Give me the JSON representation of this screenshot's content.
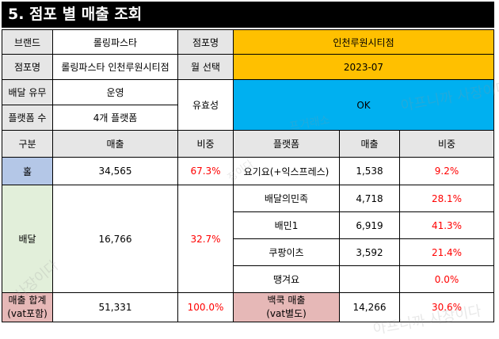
{
  "title": "5. 점포 별 매출 조회",
  "info": {
    "brand_label": "브랜드",
    "brand_value": "롤링파스타",
    "store_name_label": "점포명",
    "store_name_value": "인천루원시티점",
    "store_label": "점포명",
    "store_value": "롤링파스타 인천루원시티점",
    "month_label": "월 선택",
    "month_value": "2023-07",
    "delivery_label": "배달 유무",
    "delivery_value": "운영",
    "validity_label": "유효성",
    "validity_value": "OK",
    "platform_count_label": "플랫폼 수",
    "platform_count_value": "4개 플랫폼"
  },
  "headers": {
    "category": "구분",
    "sales": "매출",
    "ratio": "비중",
    "platform": "플랫폼",
    "platform_sales": "매출",
    "platform_ratio": "비중"
  },
  "hall": {
    "label": "홀",
    "sales": "34,565",
    "ratio": "67.3%"
  },
  "delivery": {
    "label": "배달",
    "sales": "16,766",
    "ratio": "32.7%"
  },
  "platforms": [
    {
      "name": "요기요(+익스프레스)",
      "sales": "1,538",
      "ratio": "9.2%"
    },
    {
      "name": "배달의민족",
      "sales": "4,718",
      "ratio": "28.1%"
    },
    {
      "name": "배민1",
      "sales": "6,919",
      "ratio": "41.3%"
    },
    {
      "name": "쿠팡이츠",
      "sales": "3,592",
      "ratio": "21.4%"
    },
    {
      "name": "땡겨요",
      "sales": "",
      "ratio": "0.0%"
    }
  ],
  "total": {
    "label_line1": "매출 합계",
    "label_line2": "(vat포함)",
    "sales": "51,331",
    "ratio": "100.0%"
  },
  "back": {
    "label_line1": "백쿡 매출",
    "label_line2": "(vat별도)",
    "sales": "14,266",
    "ratio": "30.6%"
  },
  "watermarks": [
    "아프니까 사장이다",
    "아프니까 사장이다",
    "사장이다",
    "장이다",
    "프거래소"
  ]
}
